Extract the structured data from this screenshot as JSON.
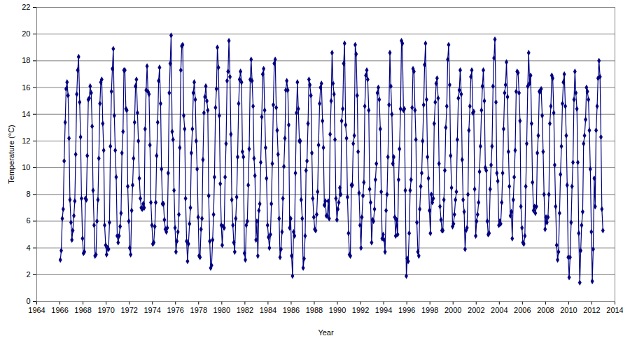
{
  "chart_data": {
    "type": "line",
    "x_label": "Year",
    "y_label": "Temperature (°C)",
    "color": "#000080",
    "marker": "diamond",
    "line_style": "solid",
    "grid": true,
    "xlim": [
      1964,
      2014
    ],
    "xticks": [
      1964,
      1966,
      1968,
      1970,
      1972,
      1974,
      1976,
      1978,
      1980,
      1982,
      1984,
      1986,
      1988,
      1990,
      1992,
      1994,
      1996,
      1998,
      2000,
      2002,
      2004,
      2006,
      2008,
      2010,
      2012,
      2014
    ],
    "ylim": [
      0,
      22
    ],
    "yticks": [
      0,
      2,
      4,
      6,
      8,
      10,
      12,
      14,
      16,
      18,
      20,
      22
    ],
    "x": [
      1966.04,
      1966.12,
      1966.21,
      1966.29,
      1966.37,
      1966.46,
      1966.54,
      1966.62,
      1966.71,
      1966.79,
      1966.87,
      1966.96,
      1967.04,
      1967.12,
      1967.21,
      1967.29,
      1967.37,
      1967.46,
      1967.54,
      1967.62,
      1967.71,
      1967.79,
      1967.87,
      1967.96,
      1968.04,
      1968.12,
      1968.21,
      1968.29,
      1968.37,
      1968.46,
      1968.54,
      1968.62,
      1968.71,
      1968.79,
      1968.87,
      1968.96,
      1969.04,
      1969.12,
      1969.21,
      1969.29,
      1969.37,
      1969.46,
      1969.54,
      1969.62,
      1969.71,
      1969.79,
      1969.87,
      1969.96,
      1970.04,
      1970.12,
      1970.21,
      1970.29,
      1970.37,
      1970.46,
      1970.54,
      1970.62,
      1970.71,
      1970.79,
      1970.87,
      1970.96,
      1971.04,
      1971.12,
      1971.21,
      1971.29,
      1971.37,
      1971.46,
      1971.54,
      1971.62,
      1971.71,
      1971.79,
      1971.87,
      1971.96,
      1972.04,
      1972.12,
      1972.21,
      1972.29,
      1972.37,
      1972.46,
      1972.54,
      1972.62,
      1972.71,
      1972.79,
      1972.87,
      1972.96,
      1973.04,
      1973.12,
      1973.21,
      1973.29,
      1973.37,
      1973.46,
      1973.54,
      1973.62,
      1973.71,
      1973.79,
      1973.87,
      1973.96,
      1974.04,
      1974.12,
      1974.21,
      1974.29,
      1974.37,
      1974.46,
      1974.54,
      1974.62,
      1974.71,
      1974.79,
      1974.87,
      1974.96,
      1975.04,
      1975.12,
      1975.21,
      1975.29,
      1975.37,
      1975.46,
      1975.54,
      1975.62,
      1975.71,
      1975.79,
      1975.87,
      1975.96,
      1976.04,
      1976.12,
      1976.21,
      1976.29,
      1976.37,
      1976.46,
      1976.54,
      1976.62,
      1976.71,
      1976.79,
      1976.87,
      1976.96,
      1977.04,
      1977.12,
      1977.21,
      1977.29,
      1977.37,
      1977.46,
      1977.54,
      1977.62,
      1977.71,
      1977.79,
      1977.87,
      1977.96,
      1978.04,
      1978.12,
      1978.21,
      1978.29,
      1978.37,
      1978.46,
      1978.54,
      1978.62,
      1978.71,
      1978.79,
      1978.87,
      1978.96,
      1979.04,
      1979.12,
      1979.21,
      1979.29,
      1979.37,
      1979.46,
      1979.54,
      1979.62,
      1979.71,
      1979.79,
      1979.87,
      1979.96,
      1980.04,
      1980.12,
      1980.21,
      1980.29,
      1980.37,
      1980.46,
      1980.54,
      1980.62,
      1980.71,
      1980.79,
      1980.87,
      1980.96,
      1981.04,
      1981.12,
      1981.21,
      1981.29,
      1981.37,
      1981.46,
      1981.54,
      1981.62,
      1981.71,
      1981.79,
      1981.87,
      1981.96,
      1982.04,
      1982.12,
      1982.21,
      1982.29,
      1982.37,
      1982.46,
      1982.54,
      1982.62,
      1982.71,
      1982.79,
      1982.87,
      1982.96,
      1983.04,
      1983.12,
      1983.21,
      1983.29,
      1983.37,
      1983.46,
      1983.54,
      1983.62,
      1983.71,
      1983.79,
      1983.87,
      1983.96,
      1984.04,
      1984.12,
      1984.21,
      1984.29,
      1984.37,
      1984.46,
      1984.54,
      1984.62,
      1984.71,
      1984.79,
      1984.87,
      1984.96,
      1985.04,
      1985.12,
      1985.21,
      1985.29,
      1985.37,
      1985.46,
      1985.54,
      1985.62,
      1985.71,
      1985.79,
      1985.87,
      1985.96,
      1986.04,
      1986.12,
      1986.21,
      1986.29,
      1986.37,
      1986.46,
      1986.54,
      1986.62,
      1986.71,
      1986.79,
      1986.87,
      1986.96,
      1987.04,
      1987.12,
      1987.21,
      1987.29,
      1987.37,
      1987.46,
      1987.54,
      1987.62,
      1987.71,
      1987.79,
      1987.87,
      1987.96,
      1988.04,
      1988.12,
      1988.21,
      1988.29,
      1988.37,
      1988.46,
      1988.54,
      1988.62,
      1988.71,
      1988.79,
      1988.87,
      1988.96,
      1989.04,
      1989.12,
      1989.21,
      1989.29,
      1989.37,
      1989.46,
      1989.54,
      1989.62,
      1989.71,
      1989.79,
      1989.87,
      1989.96,
      1990.04,
      1990.12,
      1990.21,
      1990.29,
      1990.37,
      1990.46,
      1990.54,
      1990.62,
      1990.71,
      1990.79,
      1990.87,
      1990.96,
      1991.04,
      1991.12,
      1991.21,
      1991.29,
      1991.37,
      1991.46,
      1991.54,
      1991.62,
      1991.71,
      1991.79,
      1991.87,
      1991.96,
      1992.04,
      1992.12,
      1992.21,
      1992.29,
      1992.37,
      1992.46,
      1992.54,
      1992.62,
      1992.71,
      1992.79,
      1992.87,
      1992.96,
      1993.04,
      1993.12,
      1993.21,
      1993.29,
      1993.37,
      1993.46,
      1993.54,
      1993.62,
      1993.71,
      1993.79,
      1993.87,
      1993.96,
      1994.04,
      1994.12,
      1994.21,
      1994.29,
      1994.37,
      1994.46,
      1994.54,
      1994.62,
      1994.71,
      1994.79,
      1994.87,
      1994.96,
      1995.04,
      1995.12,
      1995.21,
      1995.29,
      1995.37,
      1995.46,
      1995.54,
      1995.62,
      1995.71,
      1995.79,
      1995.87,
      1995.96,
      1996.04,
      1996.12,
      1996.21,
      1996.29,
      1996.37,
      1996.46,
      1996.54,
      1996.62,
      1996.71,
      1996.79,
      1996.87,
      1996.96,
      1997.04,
      1997.12,
      1997.21,
      1997.29,
      1997.37,
      1997.46,
      1997.54,
      1997.62,
      1997.71,
      1997.79,
      1997.87,
      1997.96,
      1998.04,
      1998.12,
      1998.21,
      1998.29,
      1998.37,
      1998.46,
      1998.54,
      1998.62,
      1998.71,
      1998.79,
      1998.87,
      1998.96,
      1999.04,
      1999.12,
      1999.21,
      1999.29,
      1999.37,
      1999.46,
      1999.54,
      1999.62,
      1999.71,
      1999.79,
      1999.87,
      1999.96,
      2000.04,
      2000.12,
      2000.21,
      2000.29,
      2000.37,
      2000.46,
      2000.54,
      2000.62,
      2000.71,
      2000.79,
      2000.87,
      2000.96,
      2001.04,
      2001.12,
      2001.21,
      2001.29,
      2001.37,
      2001.46,
      2001.54,
      2001.62,
      2001.71,
      2001.79,
      2001.87,
      2001.96,
      2002.04,
      2002.12,
      2002.21,
      2002.29,
      2002.37,
      2002.46,
      2002.54,
      2002.62,
      2002.71,
      2002.79,
      2002.87,
      2002.96,
      2003.04,
      2003.12,
      2003.21,
      2003.29,
      2003.37,
      2003.46,
      2003.54,
      2003.62,
      2003.71,
      2003.79,
      2003.87,
      2003.96,
      2004.04,
      2004.12,
      2004.21,
      2004.29,
      2004.37,
      2004.46,
      2004.54,
      2004.62,
      2004.71,
      2004.79,
      2004.87,
      2004.96,
      2005.04,
      2005.12,
      2005.21,
      2005.29,
      2005.37,
      2005.46,
      2005.54,
      2005.62,
      2005.71,
      2005.79,
      2005.87,
      2005.96,
      2006.04,
      2006.12,
      2006.21,
      2006.29,
      2006.37,
      2006.46,
      2006.54,
      2006.62,
      2006.71,
      2006.79,
      2006.87,
      2006.96,
      2007.04,
      2007.12,
      2007.21,
      2007.29,
      2007.37,
      2007.46,
      2007.54,
      2007.62,
      2007.71,
      2007.79,
      2007.87,
      2007.96,
      2008.04,
      2008.12,
      2008.21,
      2008.29,
      2008.37,
      2008.46,
      2008.54,
      2008.62,
      2008.71,
      2008.79,
      2008.87,
      2008.96,
      2009.04,
      2009.12,
      2009.21,
      2009.29,
      2009.37,
      2009.46,
      2009.54,
      2009.62,
      2009.71,
      2009.79,
      2009.87,
      2009.96,
      2010.04,
      2010.12,
      2010.21,
      2010.29,
      2010.37,
      2010.46,
      2010.54,
      2010.62,
      2010.71,
      2010.79,
      2010.87,
      2010.96,
      2011.04,
      2011.12,
      2011.21,
      2011.29,
      2011.37,
      2011.46,
      2011.54,
      2011.62,
      2011.71,
      2011.79,
      2011.87,
      2011.96,
      2012.04,
      2012.12,
      2012.21,
      2012.29,
      2012.37,
      2012.46,
      2012.54,
      2012.62,
      2012.71,
      2012.79,
      2012.87,
      2012.96
    ],
    "values": [
      3.1,
      3.8,
      6.2,
      6.9,
      10.5,
      13.4,
      15.9,
      16.4,
      15.4,
      12.2,
      7.6,
      5.9,
      4.6,
      5.3,
      6.4,
      7.5,
      11.0,
      15.5,
      17.3,
      18.3,
      14.9,
      12.3,
      7.7,
      4.7,
      3.6,
      3.7,
      7.7,
      7.6,
      10.9,
      15.1,
      15.2,
      16.1,
      15.6,
      13.1,
      8.3,
      5.7,
      3.4,
      3.5,
      6.0,
      7.6,
      10.7,
      14.8,
      16.4,
      16.6,
      13.3,
      11.3,
      5.7,
      4.2,
      3.5,
      4.0,
      3.9,
      5.9,
      11.6,
      15.7,
      17.4,
      18.9,
      13.9,
      11.3,
      9.3,
      4.9,
      4.4,
      4.9,
      5.6,
      6.6,
      11.1,
      12.7,
      17.3,
      17.3,
      14.4,
      14.3,
      8.6,
      6.0,
      4.0,
      3.5,
      6.8,
      8.7,
      10.7,
      13.4,
      16.1,
      16.6,
      14.1,
      12.0,
      9.2,
      7.7,
      7.0,
      6.9,
      7.3,
      7.0,
      12.9,
      15.8,
      17.6,
      15.7,
      15.5,
      11.7,
      7.4,
      5.7,
      4.3,
      4.4,
      5.6,
      7.4,
      10.9,
      13.4,
      16.5,
      17.5,
      14.8,
      9.9,
      7.3,
      7.3,
      6.1,
      5.4,
      5.2,
      5.5,
      9.6,
      15.6,
      17.8,
      19.9,
      12.7,
      12.1,
      8.3,
      5.5,
      3.7,
      4.5,
      5.2,
      6.5,
      11.5,
      17.3,
      19.1,
      19.2,
      13.9,
      12.9,
      7.7,
      4.5,
      3.0,
      4.3,
      5.8,
      7.0,
      11.1,
      12.9,
      15.6,
      16.4,
      15.1,
      12.0,
      9.9,
      6.3,
      3.4,
      3.3,
      5.4,
      6.2,
      10.6,
      14.1,
      15.3,
      16.1,
      15.0,
      14.3,
      7.9,
      4.5,
      2.5,
      2.7,
      4.6,
      6.5,
      9.3,
      14.5,
      15.9,
      19.0,
      17.5,
      13.9,
      8.8,
      5.7,
      4.2,
      5.6,
      5.5,
      9.3,
      11.8,
      16.5,
      17.2,
      19.5,
      16.8,
      12.5,
      7.6,
      5.7,
      4.4,
      3.7,
      6.2,
      7.8,
      10.8,
      14.8,
      16.6,
      17.2,
      16.4,
      11.2,
      10.8,
      3.6,
      3.1,
      5.7,
      6.0,
      8.7,
      11.4,
      16.6,
      18.1,
      16.5,
      14.6,
      10.7,
      9.4,
      4.6,
      6.0,
      3.4,
      6.8,
      7.3,
      10.4,
      13.8,
      17.0,
      17.4,
      14.3,
      11.5,
      9.2,
      5.7,
      4.8,
      4.0,
      5.0,
      7.3,
      10.3,
      14.7,
      17.8,
      18.1,
      14.5,
      12.8,
      11.0,
      6.2,
      3.3,
      3.9,
      5.2,
      7.7,
      10.1,
      12.2,
      15.8,
      16.5,
      15.8,
      13.2,
      5.5,
      6.2,
      3.4,
      1.9,
      5.2,
      4.9,
      9.6,
      14.1,
      16.4,
      14.4,
      12.0,
      12.0,
      7.6,
      6.2,
      2.5,
      3.2,
      4.9,
      9.8,
      10.5,
      13.3,
      16.6,
      16.2,
      15.4,
      11.1,
      7.7,
      6.3,
      5.4,
      5.3,
      6.5,
      8.2,
      11.7,
      14.8,
      16.0,
      16.3,
      13.5,
      11.5,
      7.2,
      7.5,
      6.4,
      6.4,
      7.5,
      6.2,
      12.5,
      15.0,
      18.6,
      16.3,
      15.5,
      12.1,
      7.7,
      6.1,
      6.9,
      7.4,
      8.5,
      8.0,
      13.5,
      14.4,
      17.8,
      19.3,
      13.2,
      12.2,
      7.8,
      5.1,
      3.5,
      3.4,
      8.7,
      8.7,
      11.8,
      12.4,
      19.2,
      18.5,
      15.4,
      11.2,
      8.1,
      5.7,
      4.0,
      6.3,
      7.9,
      8.9,
      14.6,
      16.9,
      17.3,
      16.6,
      14.3,
      8.4,
      7.4,
      4.4,
      6.1,
      6.0,
      6.9,
      9.1,
      10.3,
      15.6,
      16.0,
      15.1,
      12.9,
      8.2,
      4.7,
      5.0,
      4.6,
      3.7,
      6.8,
      8.0,
      10.8,
      14.7,
      18.6,
      16.1,
      14.0,
      10.3,
      10.8,
      6.3,
      4.9,
      6.1,
      5.0,
      9.1,
      11.4,
      14.4,
      19.5,
      19.3,
      14.3,
      14.4,
      8.3,
      1.9,
      3.2,
      3.0,
      5.1,
      8.3,
      9.1,
      14.5,
      17.4,
      17.2,
      14.3,
      12.1,
      5.9,
      3.7,
      3.4,
      6.9,
      8.6,
      9.6,
      12.0,
      14.7,
      17.7,
      19.3,
      15.1,
      10.8,
      9.2,
      6.8,
      5.1,
      8.0,
      7.4,
      7.7,
      13.3,
      14.9,
      16.3,
      16.7,
      15.2,
      10.3,
      7.1,
      6.1,
      5.3,
      5.3,
      7.6,
      9.8,
      13.0,
      14.6,
      18.1,
      19.2,
      16.2,
      10.9,
      8.5,
      5.6,
      5.8,
      6.5,
      7.6,
      8.2,
      12.1,
      15.2,
      15.8,
      17.3,
      15.5,
      10.6,
      7.6,
      6.7,
      3.9,
      5.3,
      5.5,
      8.0,
      12.8,
      14.6,
      16.8,
      17.3,
      14.1,
      14.2,
      8.4,
      4.9,
      6.0,
      6.5,
      7.4,
      9.7,
      11.6,
      14.3,
      16.1,
      17.3,
      15.0,
      10.0,
      9.8,
      6.0,
      5.0,
      5.1,
      8.4,
      10.2,
      11.6,
      16.1,
      18.2,
      19.6,
      14.9,
      9.6,
      9.0,
      5.7,
      6.0,
      5.8,
      7.4,
      9.6,
      12.9,
      15.6,
      16.2,
      17.9,
      15.3,
      11.2,
      8.6,
      6.4,
      6.7,
      4.7,
      7.6,
      9.3,
      11.3,
      15.7,
      17.2,
      17.1,
      15.6,
      13.5,
      7.1,
      5.5,
      4.4,
      4.3,
      4.9,
      8.6,
      11.8,
      16.1,
      18.6,
      16.3,
      16.9,
      13.3,
      8.9,
      6.8,
      7.1,
      6.6,
      7.1,
      11.1,
      12.4,
      15.7,
      15.7,
      15.9,
      13.9,
      11.2,
      8.0,
      5.4,
      6.3,
      5.9,
      6.3,
      8.0,
      13.3,
      14.6,
      16.9,
      16.7,
      14.1,
      10.2,
      7.1,
      4.2,
      3.1,
      3.7,
      6.6,
      9.5,
      11.6,
      14.8,
      16.4,
      17.0,
      14.6,
      12.4,
      8.7,
      3.3,
      1.8,
      3.3,
      5.9,
      8.6,
      10.4,
      15.1,
      17.2,
      15.6,
      14.4,
      10.4,
      5.1,
      1.4,
      3.8,
      5.7,
      6.7,
      11.8,
      12.4,
      13.6,
      16.0,
      15.7,
      15.1,
      12.8,
      9.9,
      5.2,
      1.5,
      3.9,
      9.2,
      7.1,
      12.8,
      14.6,
      16.7,
      18.0,
      16.8,
      12.3,
      6.9,
      5.3
    ]
  }
}
